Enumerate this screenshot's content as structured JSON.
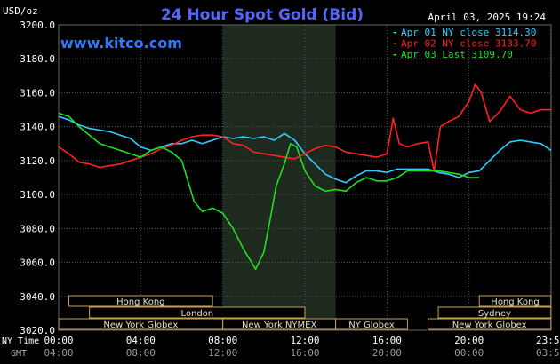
{
  "header": {
    "unit": "USD/oz",
    "title": "24 Hour Spot Gold (Bid)",
    "date": "April 03, 2025 19:24",
    "brand": "www.kitco.com"
  },
  "legend": [
    {
      "label": "Apr 01 NY close 3114.30",
      "color": "#33ccff"
    },
    {
      "label": "Apr 02 NY close 3133.70",
      "color": "#ff2222"
    },
    {
      "label": "Apr 03 Last 3109.70",
      "color": "#22dd22"
    }
  ],
  "axis_labels": {
    "ny_time": "NY Time",
    "gmt": "GMT"
  },
  "sessions": [
    {
      "label": "Hong Kong",
      "row": 0,
      "start_h": 0.5,
      "end_h": 7.5
    },
    {
      "label": "Hong Kong",
      "row": 0,
      "start_h": 20.5,
      "end_h": 23.99
    },
    {
      "label": "London",
      "row": 1,
      "start_h": 1.5,
      "end_h": 12.0
    },
    {
      "label": "Sydney",
      "row": 1,
      "start_h": 18.5,
      "end_h": 23.99
    },
    {
      "label": "New York Globex",
      "row": 2,
      "start_h": 0.0,
      "end_h": 8.0
    },
    {
      "label": "New York NYMEX",
      "row": 2,
      "start_h": 8.0,
      "end_h": 13.5
    },
    {
      "label": "NY Globex",
      "row": 2,
      "start_h": 13.5,
      "end_h": 17.0
    },
    {
      "label": "New York Globex",
      "row": 2,
      "start_h": 18.0,
      "end_h": 23.99
    }
  ],
  "chart_data": {
    "type": "line",
    "ylim": [
      3020,
      3200
    ],
    "yticks": [
      "3200.0",
      "3180.0",
      "3160.0",
      "3140.0",
      "3120.0",
      "3100.0",
      "3080.0",
      "3060.0",
      "3040.0",
      "3020.0"
    ],
    "xlim": [
      0,
      24
    ],
    "xticks": [
      {
        "h": 0,
        "ny": "00:00",
        "gmt": "04:00"
      },
      {
        "h": 4,
        "ny": "04:00",
        "gmt": "08:00"
      },
      {
        "h": 8,
        "ny": "08:00",
        "gmt": "12:00"
      },
      {
        "h": 12,
        "ny": "12:00",
        "gmt": "16:00"
      },
      {
        "h": 16,
        "ny": "16:00",
        "gmt": "20:00"
      },
      {
        "h": 20,
        "ny": "20:00",
        "gmt": "00:00"
      },
      {
        "h": 23.98,
        "ny": "23:59",
        "gmt": "03:59"
      }
    ],
    "highlight_range_h": [
      8.0,
      13.5
    ],
    "series": [
      {
        "name": "Apr 01 NY close 3114.30",
        "color": "#33ccff",
        "x": [
          0,
          0.5,
          1,
          1.5,
          2,
          2.5,
          3,
          3.5,
          4,
          4.5,
          5,
          5.5,
          6,
          6.5,
          7,
          7.5,
          8,
          8.5,
          9,
          9.5,
          10,
          10.5,
          11,
          11.5,
          12,
          12.5,
          13,
          13.5,
          14,
          14.5,
          15,
          15.5,
          16,
          16.5,
          17,
          17.5,
          18,
          18.5,
          19,
          19.5,
          20,
          20.5,
          21,
          21.5,
          22,
          22.5,
          23,
          23.5,
          24
        ],
        "y": [
          3146,
          3144,
          3141,
          3139,
          3138,
          3137,
          3135,
          3133,
          3128,
          3126,
          3128,
          3130,
          3130,
          3132,
          3130,
          3132,
          3134,
          3133,
          3134,
          3133,
          3134,
          3132,
          3136,
          3132,
          3124,
          3118,
          3112,
          3109,
          3107,
          3111,
          3114,
          3114,
          3113,
          3115,
          3115,
          3115,
          3115,
          3113,
          3112,
          3110,
          3113,
          3114,
          3120,
          3126,
          3131,
          3132,
          3131,
          3130,
          3126
        ]
      },
      {
        "name": "Apr 02 NY close 3133.70",
        "color": "#ff2222",
        "x": [
          0,
          0.5,
          1,
          1.5,
          2,
          2.5,
          3,
          3.5,
          4,
          4.5,
          5,
          5.5,
          6,
          6.5,
          7,
          7.5,
          8,
          8.5,
          9,
          9.5,
          10,
          10.5,
          11,
          11.5,
          12,
          12.5,
          13,
          13.5,
          14,
          14.5,
          15,
          15.5,
          16,
          16.3,
          16.6,
          17,
          17.5,
          18,
          18.3,
          18.6,
          19,
          19.5,
          20,
          20.3,
          20.6,
          21,
          21.5,
          22,
          22.5,
          23,
          23.5,
          24
        ],
        "y": [
          3128,
          3124,
          3119,
          3118,
          3116,
          3117,
          3118,
          3120,
          3122,
          3124,
          3127,
          3129,
          3132,
          3134,
          3135,
          3135,
          3134,
          3130,
          3129,
          3125,
          3124,
          3123,
          3122,
          3121,
          3124,
          3127,
          3129,
          3128,
          3125,
          3124,
          3123,
          3122,
          3124,
          3145,
          3130,
          3128,
          3130,
          3131,
          3114,
          3140,
          3143,
          3146,
          3155,
          3165,
          3160,
          3143,
          3149,
          3158,
          3150,
          3148,
          3150,
          3150
        ]
      },
      {
        "name": "Apr 03 Last 3109.70",
        "color": "#22dd22",
        "x": [
          0,
          0.5,
          1,
          1.5,
          2,
          2.5,
          3,
          3.5,
          4,
          4.5,
          5,
          5.5,
          6,
          6.3,
          6.6,
          7,
          7.5,
          8,
          8.5,
          9,
          9.3,
          9.6,
          10,
          10.3,
          10.6,
          11,
          11.3,
          11.6,
          12,
          12.5,
          13,
          13.5,
          14,
          14.5,
          15,
          15.5,
          16,
          16.5,
          17,
          17.5,
          18,
          18.5,
          19,
          19.5,
          20,
          20.5
        ],
        "y": [
          3148,
          3146,
          3140,
          3135,
          3130,
          3128,
          3126,
          3124,
          3122,
          3126,
          3128,
          3125,
          3120,
          3108,
          3096,
          3090,
          3092,
          3089,
          3080,
          3068,
          3062,
          3056,
          3066,
          3085,
          3105,
          3118,
          3130,
          3128,
          3114,
          3105,
          3102,
          3103,
          3102,
          3107,
          3110,
          3108,
          3108,
          3110,
          3114,
          3114,
          3114,
          3114,
          3113,
          3112,
          3110,
          3110
        ]
      }
    ]
  }
}
